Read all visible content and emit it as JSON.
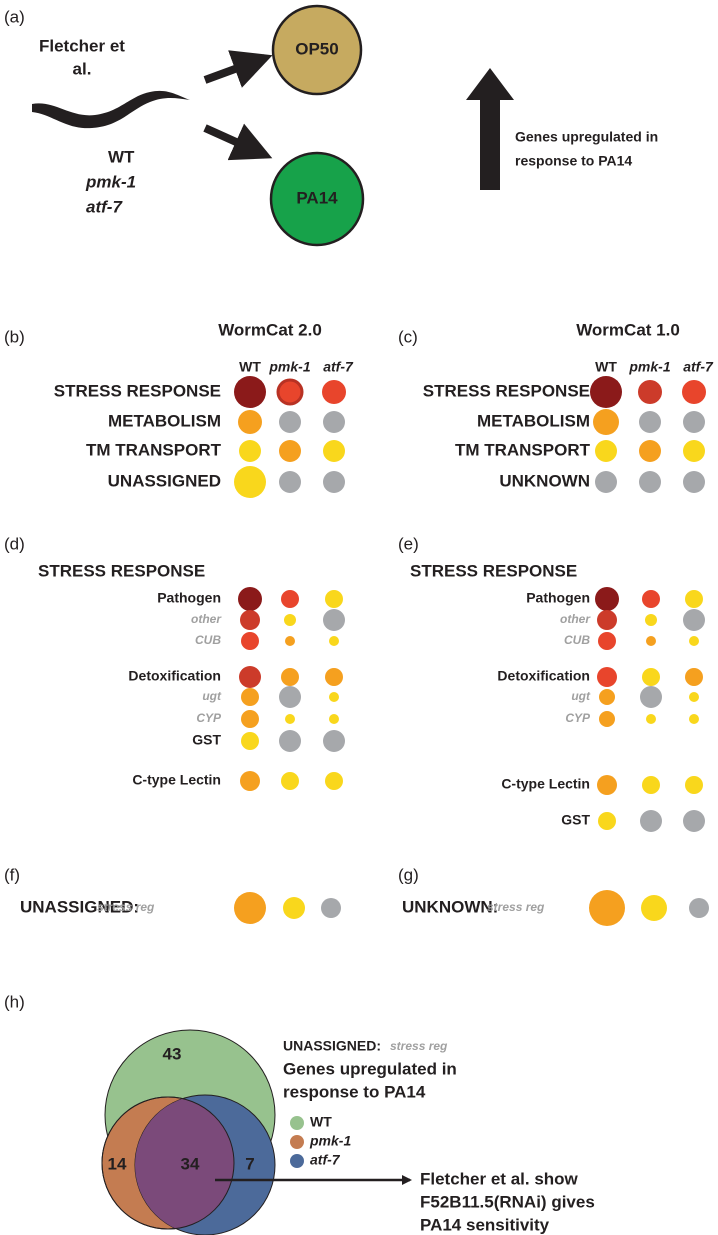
{
  "panel_a": {
    "label": "(a)",
    "source": [
      "Fletcher et",
      "al."
    ],
    "strains": [
      "WT",
      "pmk-1",
      "atf-7"
    ],
    "bacteria": [
      "OP50",
      "PA14"
    ],
    "arrow_label": [
      "Genes upregulated in",
      "response to PA14"
    ]
  },
  "panel_b": {
    "label": "(b)",
    "title": "WormCat 2.0",
    "columns": [
      "WT",
      "pmk-1",
      "atf-7"
    ],
    "rows": [
      {
        "name": "STRESS RESPONSE",
        "colors": [
          "#8b1a1a",
          "#e8452c",
          "#e8452c"
        ]
      },
      {
        "name": "METABOLISM",
        "colors": [
          "#f5a01f",
          "#a6a8ab",
          "#a6a8ab"
        ]
      },
      {
        "name": "TM TRANSPORT",
        "colors": [
          "#f9d71c",
          "#f5a01f",
          "#f9d71c"
        ]
      },
      {
        "name": "UNASSIGNED",
        "colors": [
          "#f9d71c",
          "#a6a8ab",
          "#a6a8ab"
        ]
      }
    ]
  },
  "panel_c": {
    "label": "(c)",
    "title": "WormCat 1.0",
    "columns": [
      "WT",
      "pmk-1",
      "atf-7"
    ],
    "rows": [
      {
        "name": "STRESS RESPONSE",
        "colors": [
          "#8b1a1a",
          "#cc3b2a",
          "#e8452c"
        ]
      },
      {
        "name": "METABOLISM",
        "colors": [
          "#f5a01f",
          "#a6a8ab",
          "#a6a8ab"
        ]
      },
      {
        "name": "TM TRANSPORT",
        "colors": [
          "#f9d71c",
          "#f5a01f",
          "#f9d71c"
        ]
      },
      {
        "name": "UNKNOWN",
        "colors": [
          "#a6a8ab",
          "#a6a8ab",
          "#a6a8ab"
        ]
      }
    ]
  },
  "panel_d": {
    "label": "(d)",
    "heading": "STRESS RESPONSE",
    "rows": [
      {
        "name": "Pathogen",
        "colors": [
          "#8b1a1a",
          "#e8452c",
          "#f9d71c"
        ]
      },
      {
        "name": "other",
        "colors": [
          "#cc3b2a",
          "#f9d71c",
          "#a6a8ab"
        ]
      },
      {
        "name": "CUB",
        "colors": [
          "#e8452c",
          "#f5a01f",
          "#f9d71c"
        ]
      },
      {
        "name": "Detoxification",
        "colors": [
          "#cc3b2a",
          "#f5a01f",
          "#f5a01f"
        ]
      },
      {
        "name": "ugt",
        "colors": [
          "#f5a01f",
          "#a6a8ab",
          "#f9d71c"
        ]
      },
      {
        "name": "CYP",
        "colors": [
          "#f5a01f",
          "#f9d71c",
          "#f9d71c"
        ]
      },
      {
        "name": "GST",
        "colors": [
          "#f9d71c",
          "#a6a8ab",
          "#a6a8ab"
        ]
      },
      {
        "name": "C-type Lectin",
        "colors": [
          "#f5a01f",
          "#f9d71c",
          "#f9d71c"
        ]
      }
    ]
  },
  "panel_e": {
    "label": "(e)",
    "heading": "STRESS RESPONSE",
    "rows": [
      {
        "name": "Pathogen",
        "colors": [
          "#8b1a1a",
          "#e8452c",
          "#f9d71c"
        ]
      },
      {
        "name": "other",
        "colors": [
          "#cc3b2a",
          "#f9d71c",
          "#a6a8ab"
        ]
      },
      {
        "name": "CUB",
        "colors": [
          "#e8452c",
          "#f5a01f",
          "#f9d71c"
        ]
      },
      {
        "name": "Detoxification",
        "colors": [
          "#e8452c",
          "#f9d71c",
          "#f5a01f"
        ]
      },
      {
        "name": "ugt",
        "colors": [
          "#f5a01f",
          "#a6a8ab",
          "#f9d71c"
        ]
      },
      {
        "name": "CYP",
        "colors": [
          "#f5a01f",
          "#f9d71c",
          "#f9d71c"
        ]
      },
      {
        "name": "C-type Lectin",
        "colors": [
          "#f5a01f",
          "#f9d71c",
          "#f9d71c"
        ]
      },
      {
        "name": "GST",
        "colors": [
          "#f9d71c",
          "#a6a8ab",
          "#a6a8ab"
        ]
      }
    ]
  },
  "panel_f": {
    "label": "(f)",
    "category": "UNASSIGNED:",
    "subcategory": "stress reg",
    "colors": [
      "#f5a01f",
      "#f9d71c",
      "#a6a8ab"
    ]
  },
  "panel_g": {
    "label": "(g)",
    "category": "UNKNOWN:",
    "subcategory": "stress reg",
    "colors": [
      "#f5a01f",
      "#f9d71c",
      "#a6a8ab"
    ]
  },
  "panel_h": {
    "label": "(h)",
    "category": "UNASSIGNED:",
    "subcategory": "stress reg",
    "title": [
      "Genes upregulated in",
      "response to PA14"
    ],
    "legend": [
      {
        "name": "WT",
        "color": "#97c28e"
      },
      {
        "name": "pmk-1",
        "color": "#c47c51"
      },
      {
        "name": "atf-7",
        "color": "#4c6a9a"
      }
    ],
    "counts": [
      "43",
      "14",
      "34",
      "7"
    ],
    "note": [
      "Fletcher et al. show",
      "F52B11.5(RNAi) gives",
      "PA14 sensitivity"
    ]
  }
}
